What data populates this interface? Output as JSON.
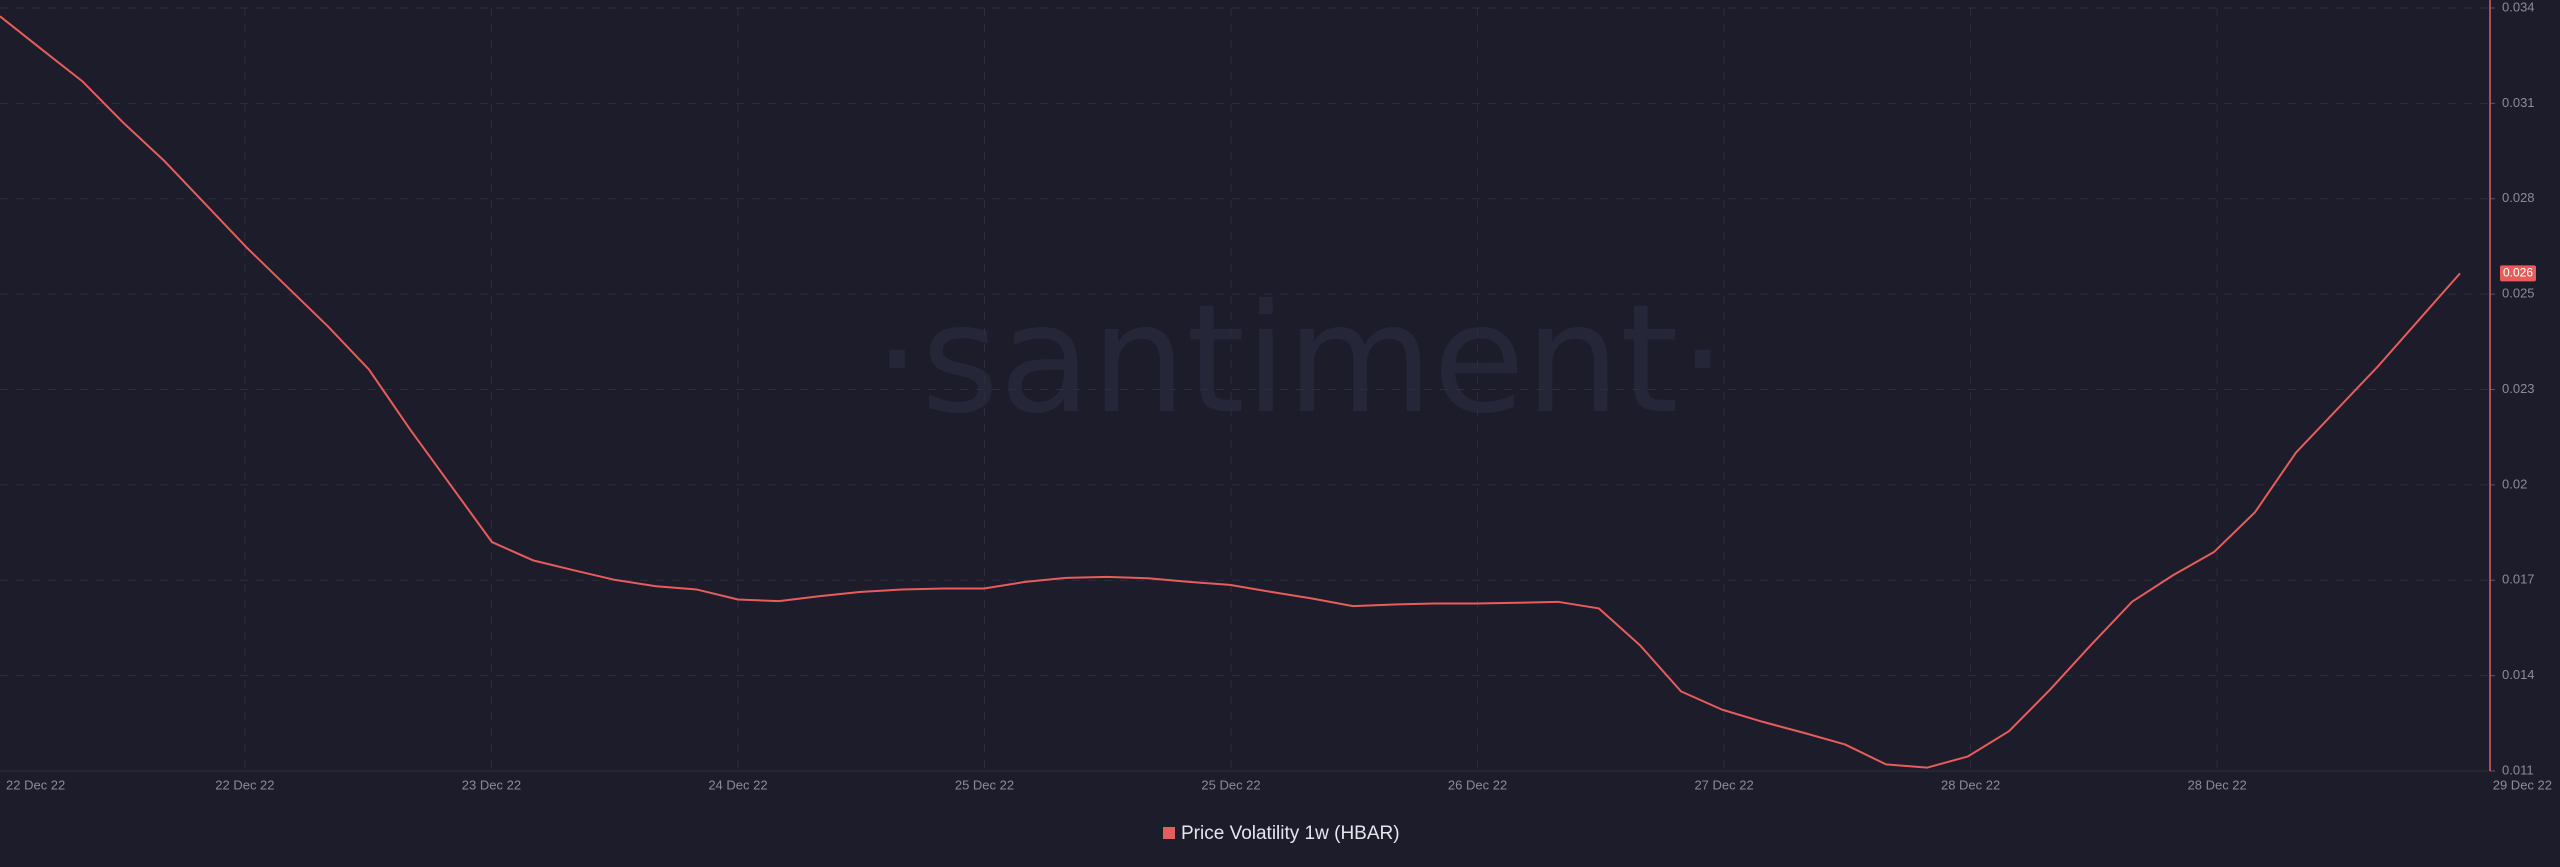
{
  "chart_data": {
    "type": "line",
    "watermark": "·santiment·",
    "x_labels": [
      "22 Dec 22",
      "22 Dec 22",
      "23 Dec 22",
      "24 Dec 22",
      "25 Dec 22",
      "25 Dec 22",
      "26 Dec 22",
      "27 Dec 22",
      "28 Dec 22",
      "28 Dec 22",
      "29 Dec 22"
    ],
    "series": [
      {
        "name": "Price Volatility 1w (HBAR)",
        "color": "#e85c5c",
        "values": [
          0.03375,
          0.03277,
          0.0318,
          0.03055,
          0.0294,
          0.0281,
          0.0268,
          0.0256,
          0.0244,
          0.0231,
          0.0213,
          0.0196,
          0.0179,
          0.01735,
          0.01705,
          0.01676,
          0.01657,
          0.01647,
          0.01617,
          0.01612,
          0.01627,
          0.0164,
          0.01647,
          0.0165,
          0.0165,
          0.0167,
          0.01682,
          0.01685,
          0.01681,
          0.0167,
          0.01661,
          0.0164,
          0.0162,
          0.01597,
          0.01602,
          0.01605,
          0.01605,
          0.01607,
          0.0161,
          0.0159,
          0.01479,
          0.0134,
          0.01285,
          0.01248,
          0.01215,
          0.0118,
          0.0112,
          0.0111,
          0.01144,
          0.0122,
          0.01345,
          0.0148,
          0.0161,
          0.0169,
          0.0176,
          0.0188,
          0.0206,
          0.0219,
          0.0232,
          0.0246,
          0.026
        ]
      }
    ],
    "ylim": [
      0.011,
      0.034
    ],
    "yticks": [
      0.011,
      {
        "value": 0.013875,
        "label": "0.014"
      },
      {
        "value": 0.01675,
        "label": "0.017"
      },
      {
        "value": 0.019625,
        "label": "0.02"
      },
      {
        "value": 0.0225,
        "label": "0.023"
      },
      {
        "value": 0.025375,
        "label": "0.025"
      },
      {
        "value": 0.02825,
        "label": "0.028"
      },
      {
        "value": 0.031125,
        "label": "0.031"
      },
      0.034
    ],
    "grid": true
  }
}
